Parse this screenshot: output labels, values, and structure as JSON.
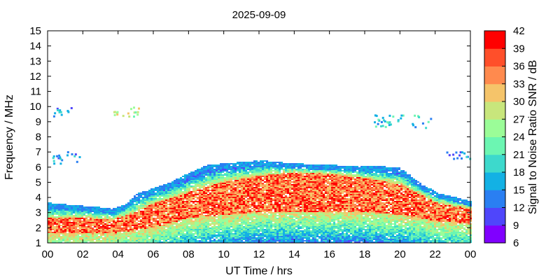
{
  "chart_data": {
    "type": "heatmap",
    "title": "2025-09-09",
    "xlabel": "UT Time / hrs",
    "ylabel": "Frequency / MHz",
    "colorbar_label": "Signal to Noise Ratio SNR / dB",
    "x_ticks": [
      "00",
      "02",
      "04",
      "06",
      "08",
      "10",
      "12",
      "14",
      "16",
      "18",
      "20",
      "22",
      "00"
    ],
    "y_ticks": [
      "1",
      "2",
      "3",
      "4",
      "5",
      "6",
      "7",
      "8",
      "9",
      "10",
      "11",
      "12",
      "13",
      "14",
      "15"
    ],
    "xlim": [
      0,
      24
    ],
    "ylim": [
      1,
      15
    ],
    "colorbar": {
      "ticks": [
        "6",
        "9",
        "12",
        "15",
        "18",
        "21",
        "24",
        "27",
        "30",
        "33",
        "36",
        "39",
        "42"
      ],
      "range": [
        6,
        42
      ],
      "colors": [
        "#8000ff",
        "#4f46fb",
        "#2a7ff2",
        "#13b1e4",
        "#3dd9cc",
        "#6cf6b2",
        "#9bfd98",
        "#c8e67c",
        "#f5c46a",
        "#ff8a4e",
        "#ff4f2a",
        "#ff0000"
      ]
    },
    "bands": [
      {
        "name": "upper_edge",
        "x": [
          0,
          2,
          3,
          3.6,
          4.4,
          5,
          6,
          7,
          8,
          9,
          10,
          12,
          14,
          16,
          18,
          19,
          20,
          21,
          22,
          23,
          24
        ],
        "y": [
          3.6,
          3.4,
          3.3,
          3.2,
          3.5,
          4.2,
          4.6,
          5.0,
          5.6,
          6.1,
          6.2,
          6.4,
          6.2,
          6.1,
          6.0,
          6.0,
          5.9,
          5.0,
          4.3,
          4.0,
          3.7
        ]
      },
      {
        "name": "core_low",
        "x": [
          0,
          2,
          3.6,
          5,
          6,
          7,
          8,
          10,
          12,
          14,
          16,
          18,
          20,
          22,
          24
        ],
        "y": [
          1.6,
          1.6,
          1.6,
          1.8,
          2.0,
          2.3,
          2.6,
          2.8,
          3.0,
          3.0,
          3.0,
          3.0,
          2.8,
          2.4,
          2.2
        ]
      },
      {
        "name": "core_high",
        "x": [
          0,
          2,
          3.6,
          5,
          6,
          7,
          8,
          10,
          12,
          14,
          16,
          18,
          20,
          22,
          24
        ],
        "y": [
          2.6,
          2.6,
          2.5,
          3.0,
          3.6,
          3.9,
          4.3,
          5.0,
          5.4,
          5.6,
          5.5,
          5.2,
          4.8,
          3.6,
          3.2
        ]
      }
    ],
    "scatter_patches": [
      {
        "x": [
          0.3,
          1.4
        ],
        "y": [
          9.4,
          10.0
        ],
        "snr": 15
      },
      {
        "x": [
          3.5,
          5.2
        ],
        "y": [
          9.3,
          10.0
        ],
        "snr": 27
      },
      {
        "x": [
          18.2,
          21.8
        ],
        "y": [
          8.6,
          9.5
        ],
        "snr": 18
      },
      {
        "x": [
          0.2,
          2.0
        ],
        "y": [
          6.3,
          7.1
        ],
        "snr": 15
      },
      {
        "x": [
          22.6,
          24.0
        ],
        "y": [
          6.6,
          7.1
        ],
        "snr": 15
      }
    ]
  }
}
